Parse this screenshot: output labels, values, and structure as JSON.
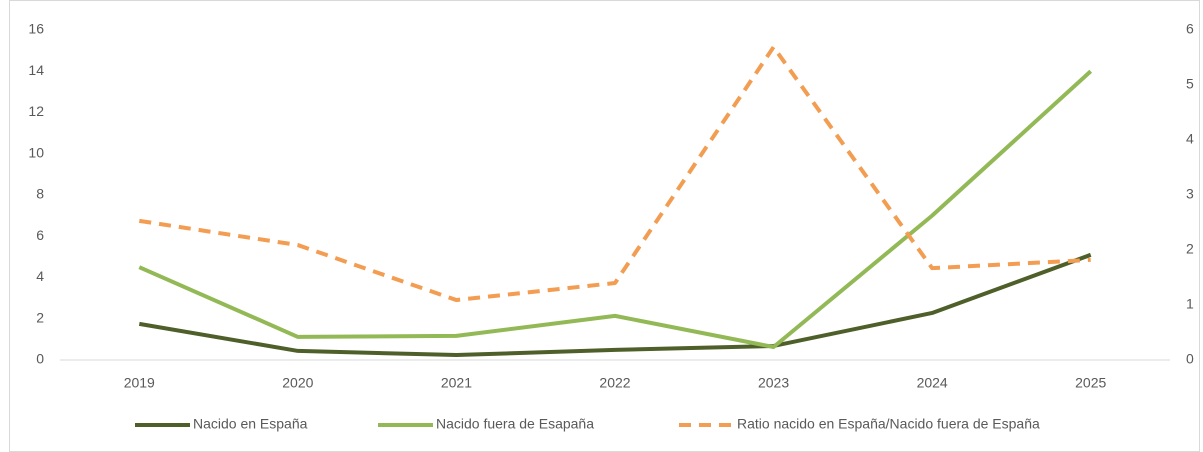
{
  "chart_data": {
    "type": "line",
    "categories": [
      "2019",
      "2020",
      "2021",
      "2022",
      "2023",
      "2024",
      "2025"
    ],
    "series": [
      {
        "name": "Nacido en España",
        "color": "#4e5f2a",
        "dash": false,
        "values": [
          1.75,
          0.44,
          0.24,
          0.49,
          0.68,
          2.28,
          5.1
        ]
      },
      {
        "name": "Nacido fuera de Esapaña",
        "color": "#92b956",
        "dash": false,
        "values": [
          4.5,
          1.12,
          1.17,
          2.14,
          0.63,
          7.0,
          14.0
        ]
      },
      {
        "name": "Ratio nacido en España/Nacido fuera de España",
        "color": "#f29d52",
        "dash": true,
        "axis": "y2",
        "values": [
          2.53,
          2.09,
          1.09,
          1.4,
          5.69,
          1.67,
          1.82
        ]
      }
    ],
    "ylim": [
      0,
      16
    ],
    "yticks": [
      0,
      2,
      4,
      6,
      8,
      10,
      12,
      14,
      16
    ],
    "y2lim": [
      0,
      6
    ],
    "y2ticks": [
      0,
      1,
      2,
      3,
      4,
      5,
      6
    ],
    "legend": "bottom"
  }
}
